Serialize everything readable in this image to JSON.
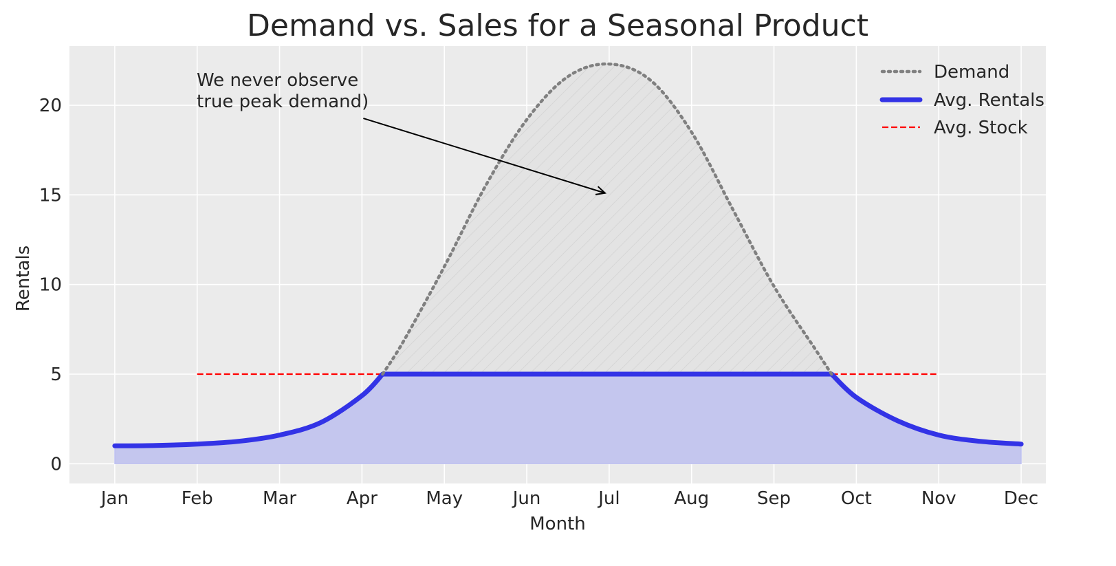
{
  "chart_data": {
    "type": "line",
    "title": "Demand vs. Sales for a Seasonal Product",
    "xlabel": "Month",
    "ylabel": "Rentals",
    "categories": [
      "Jan",
      "Feb",
      "Mar",
      "Apr",
      "May",
      "Jun",
      "Jul",
      "Aug",
      "Sep",
      "Oct",
      "Nov",
      "Dec"
    ],
    "xlim": [
      0.45,
      12.3
    ],
    "ylim": [
      -1.1,
      23.3
    ],
    "yticks": [
      0,
      5,
      10,
      15,
      20
    ],
    "grid": true,
    "legend_position": "top-right",
    "series": [
      {
        "name": "Demand",
        "style": "dotted",
        "color": "#808080",
        "x": [
          4.25,
          4.5,
          5.0,
          5.5,
          6.0,
          6.5,
          7.0,
          7.5,
          8.0,
          8.5,
          9.0,
          9.5,
          9.7
        ],
        "values": [
          5.0,
          6.8,
          11.0,
          15.5,
          19.2,
          21.6,
          22.3,
          21.4,
          18.5,
          14.2,
          9.9,
          6.4,
          5.0
        ]
      },
      {
        "name": "Avg. Rentals",
        "style": "solid",
        "color": "#3333e6",
        "x": [
          1.0,
          1.5,
          2.0,
          2.5,
          3.0,
          3.5,
          4.0,
          4.25,
          5.0,
          6.0,
          7.0,
          8.0,
          9.0,
          9.7,
          10.0,
          10.5,
          11.0,
          11.5,
          12.0
        ],
        "values": [
          1.0,
          1.02,
          1.1,
          1.25,
          1.6,
          2.3,
          3.8,
          5.0,
          5.0,
          5.0,
          5.0,
          5.0,
          5.0,
          5.0,
          3.7,
          2.4,
          1.6,
          1.25,
          1.1
        ]
      },
      {
        "name": "Avg. Stock",
        "style": "dashed",
        "color": "#ff0000",
        "x": [
          2.0,
          11.0
        ],
        "values": [
          5.0,
          5.0
        ]
      }
    ],
    "annotations": [
      {
        "text_lines": [
          "We never observe",
          "true peak demand)"
        ],
        "arrow_to": {
          "x": 6.95,
          "y": 15.1
        },
        "arrow_from": {
          "x": 4.0,
          "y": 19.5
        }
      }
    ]
  }
}
